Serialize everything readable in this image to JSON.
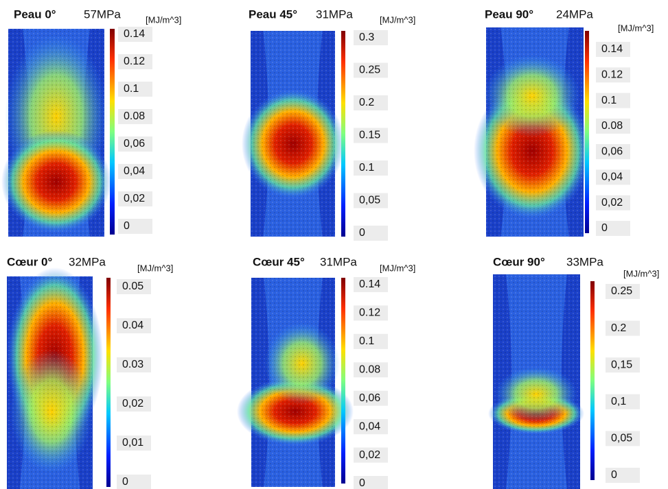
{
  "panels": [
    {
      "title": "Peau 0°",
      "stress": "57MPa",
      "unit": "[MJ/m^3]",
      "ticks": [
        "0.14",
        "0.12",
        "0.1",
        "0.08",
        "0,06",
        "0,04",
        "0,02",
        "0"
      ]
    },
    {
      "title": "Peau 45°",
      "stress": "31MPa",
      "unit": "[MJ/m^3]",
      "ticks": [
        "0.3",
        "0.25",
        "0.2",
        "0.15",
        "0.1",
        "0,05",
        "0"
      ]
    },
    {
      "title": "Peau 90°",
      "stress": "24MPa",
      "unit": "[MJ/m^3]",
      "ticks": [
        "0.14",
        "0.12",
        "0.1",
        "0.08",
        "0,06",
        "0,04",
        "0,02",
        "0"
      ]
    },
    {
      "title": "Cœur 0°",
      "stress": "32MPa",
      "unit": "[MJ/m^3]",
      "ticks": [
        "0.05",
        "0.04",
        "0.03",
        "0,02",
        "0,01",
        "0"
      ]
    },
    {
      "title": "Cœur 45°",
      "stress": "31MPa",
      "unit": "[MJ/m^3]",
      "ticks": [
        "0.14",
        "0.12",
        "0.1",
        "0.08",
        "0,06",
        "0,04",
        "0,02",
        "0"
      ]
    },
    {
      "title": "Cœur 90°",
      "stress": "33MPa",
      "unit": "[MJ/m^3]",
      "ticks": [
        "0.25",
        "0.2",
        "0,15",
        "0,1",
        "0,05",
        "0"
      ]
    }
  ]
}
